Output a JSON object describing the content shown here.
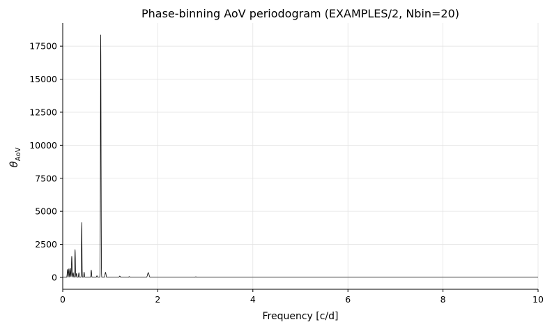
{
  "chart_data": {
    "type": "line",
    "title": "Phase-binning AoV periodogram (EXAMPLES/2, Nbin=20)",
    "xlabel": "Frequency [c/d]",
    "ylabel_symbol": "θ",
    "ylabel_subscript": "AoV",
    "xlim": [
      0,
      10
    ],
    "ylim": [
      -900,
      19250
    ],
    "xticks": [
      0,
      2,
      4,
      6,
      8,
      10
    ],
    "xtick_labels": [
      "0",
      "2",
      "4",
      "6",
      "8",
      "10"
    ],
    "yticks": [
      0,
      2500,
      5000,
      7500,
      10000,
      12500,
      15000,
      17500
    ],
    "ytick_labels": [
      "0",
      "2500",
      "5000",
      "7500",
      "10000",
      "12500",
      "15000",
      "17500"
    ],
    "grid": true,
    "line_color": "#000000",
    "series": [
      {
        "peaks": [
          {
            "x": 0.1,
            "y": 600,
            "w": 0.006
          },
          {
            "x": 0.13,
            "y": 650,
            "w": 0.006
          },
          {
            "x": 0.16,
            "y": 700,
            "w": 0.006
          },
          {
            "x": 0.19,
            "y": 1600,
            "w": 0.006
          },
          {
            "x": 0.22,
            "y": 350,
            "w": 0.006
          },
          {
            "x": 0.26,
            "y": 2100,
            "w": 0.006
          },
          {
            "x": 0.29,
            "y": 300,
            "w": 0.006
          },
          {
            "x": 0.34,
            "y": 350,
            "w": 0.006
          },
          {
            "x": 0.4,
            "y": 4150,
            "w": 0.005
          },
          {
            "x": 0.45,
            "y": 400,
            "w": 0.006
          },
          {
            "x": 0.6,
            "y": 550,
            "w": 0.006
          },
          {
            "x": 0.72,
            "y": 120,
            "w": 0.008
          },
          {
            "x": 0.8,
            "y": 18350,
            "w": 0.006
          },
          {
            "x": 0.9,
            "y": 380,
            "w": 0.01
          },
          {
            "x": 1.2,
            "y": 100,
            "w": 0.01
          },
          {
            "x": 1.4,
            "y": 60,
            "w": 0.01
          },
          {
            "x": 1.8,
            "y": 360,
            "w": 0.015
          },
          {
            "x": 2.8,
            "y": 40,
            "w": 0.02
          }
        ],
        "baseline": 15
      }
    ]
  }
}
